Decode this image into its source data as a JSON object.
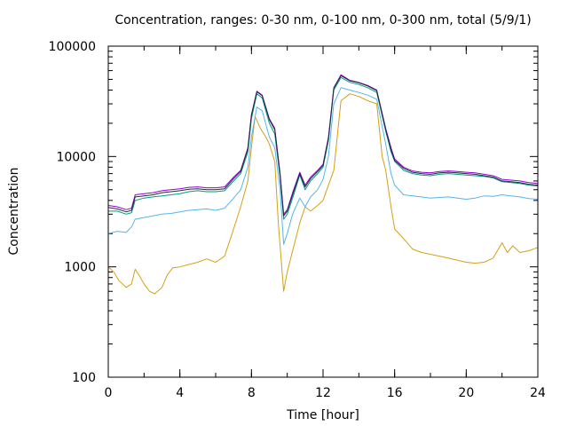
{
  "chart_data": {
    "type": "line",
    "title": "Concentration, ranges: 0-30 nm, 0-100 nm, 0-300 nm, total (5/9/1)",
    "xlabel": "Time [hour]",
    "ylabel": "Concentration",
    "xlim": [
      0,
      24
    ],
    "ylim": [
      100,
      100000
    ],
    "yscale": "log",
    "grid": false,
    "legend": "none",
    "x_ticks": [
      "0",
      "4",
      "8",
      "12",
      "16",
      "20",
      "24"
    ],
    "x_tick_values": [
      0,
      4,
      8,
      12,
      16,
      20,
      24
    ],
    "y_ticks": [
      "100",
      "1000",
      "10000",
      "100000"
    ],
    "y_tick_values": [
      100,
      1000,
      10000,
      100000
    ],
    "series": [
      {
        "color": "#d4a017",
        "x": [
          0,
          0.3,
          0.6,
          1.0,
          1.3,
          1.5,
          1.7,
          2.0,
          2.3,
          2.6,
          3.0,
          3.3,
          3.6,
          4.0,
          4.5,
          5.0,
          5.5,
          6.0,
          6.5,
          7.0,
          7.4,
          7.8,
          8.0,
          8.2,
          8.5,
          8.8,
          9.0,
          9.3,
          9.5,
          9.8,
          10.0,
          10.3,
          10.7,
          11.0,
          11.3,
          11.7,
          12.0,
          12.3,
          12.6,
          13.0,
          13.5,
          14.0,
          14.5,
          15.0,
          15.3,
          15.5,
          15.8,
          16.0,
          16.5,
          17.0,
          17.5,
          18.0,
          18.5,
          19.0,
          19.5,
          20.0,
          20.5,
          21.0,
          21.5,
          22.0,
          22.3,
          22.6,
          23.0,
          23.5,
          24.0
        ],
        "values": [
          1000,
          900,
          750,
          650,
          700,
          950,
          850,
          700,
          600,
          570,
          650,
          850,
          980,
          1000,
          1050,
          1100,
          1180,
          1100,
          1250,
          2200,
          3500,
          6000,
          12000,
          23000,
          18000,
          15000,
          13000,
          9000,
          2500,
          600,
          900,
          1400,
          2500,
          3500,
          3200,
          3600,
          4000,
          5500,
          7500,
          32000,
          37000,
          35000,
          32000,
          30000,
          10000,
          7500,
          3500,
          2200,
          1800,
          1450,
          1350,
          1300,
          1250,
          1200,
          1150,
          1100,
          1080,
          1100,
          1200,
          1650,
          1350,
          1550,
          1350,
          1400,
          1500
        ]
      },
      {
        "color": "#56b4e9",
        "x": [
          0,
          0.5,
          1.0,
          1.3,
          1.5,
          2.0,
          2.5,
          3.0,
          3.5,
          4.0,
          4.5,
          5.0,
          5.5,
          6.0,
          6.5,
          7.0,
          7.4,
          7.8,
          8.0,
          8.3,
          8.6,
          9.0,
          9.3,
          9.6,
          9.8,
          10.0,
          10.3,
          10.7,
          11.0,
          11.3,
          11.7,
          12.0,
          12.3,
          12.6,
          13.0,
          13.5,
          14.0,
          14.5,
          15.0,
          15.5,
          15.8,
          16.0,
          16.5,
          17.0,
          17.5,
          18.0,
          18.5,
          19.0,
          19.5,
          20.0,
          20.5,
          21.0,
          21.5,
          22.0,
          22.5,
          23.0,
          23.5,
          24.0
        ],
        "values": [
          2000,
          2100,
          2050,
          2300,
          2700,
          2800,
          2900,
          3000,
          3050,
          3150,
          3250,
          3300,
          3350,
          3250,
          3400,
          4200,
          5000,
          8000,
          15000,
          28000,
          26000,
          15000,
          12000,
          5000,
          1600,
          2000,
          3000,
          4200,
          3500,
          4300,
          5000,
          6200,
          10000,
          30000,
          42000,
          40000,
          38000,
          36000,
          33000,
          13000,
          7000,
          5500,
          4500,
          4400,
          4300,
          4200,
          4250,
          4300,
          4200,
          4100,
          4200,
          4400,
          4350,
          4500,
          4400,
          4300,
          4150,
          4100
        ]
      },
      {
        "color": "#009e73",
        "x": [
          0,
          0.5,
          1.0,
          1.3,
          1.5,
          2.0,
          2.5,
          3.0,
          3.5,
          4.0,
          4.5,
          5.0,
          5.5,
          6.0,
          6.5,
          7.0,
          7.4,
          7.8,
          8.0,
          8.3,
          8.6,
          9.0,
          9.3,
          9.6,
          9.8,
          10.0,
          10.3,
          10.7,
          11.0,
          11.3,
          11.7,
          12.0,
          12.3,
          12.6,
          13.0,
          13.5,
          14.0,
          14.5,
          15.0,
          15.5,
          15.8,
          16.0,
          16.5,
          17.0,
          17.5,
          18.0,
          18.5,
          19.0,
          19.5,
          20.0,
          20.5,
          21.0,
          21.5,
          22.0,
          22.5,
          23.0,
          23.5,
          24.0
        ],
        "values": [
          3200,
          3200,
          3000,
          3100,
          4000,
          4200,
          4300,
          4400,
          4500,
          4600,
          4800,
          4900,
          4800,
          4800,
          4900,
          6000,
          7000,
          11000,
          22000,
          37000,
          34000,
          20000,
          16000,
          6500,
          2700,
          3000,
          4200,
          6800,
          5000,
          6000,
          7000,
          8000,
          14000,
          40000,
          52000,
          47000,
          45000,
          42000,
          38000,
          17000,
          11000,
          9000,
          7500,
          7000,
          6800,
          6700,
          6900,
          7000,
          6900,
          6800,
          6700,
          6600,
          6400,
          5900,
          5800,
          5700,
          5500,
          5400
        ]
      },
      {
        "color": "#9400d3",
        "x": [
          0,
          0.5,
          1.0,
          1.3,
          1.5,
          2.0,
          2.5,
          3.0,
          3.5,
          4.0,
          4.5,
          5.0,
          5.5,
          6.0,
          6.5,
          7.0,
          7.4,
          7.8,
          8.0,
          8.3,
          8.6,
          9.0,
          9.3,
          9.6,
          9.8,
          10.0,
          10.3,
          10.7,
          11.0,
          11.3,
          11.7,
          12.0,
          12.3,
          12.6,
          13.0,
          13.5,
          14.0,
          14.5,
          15.0,
          15.5,
          15.8,
          16.0,
          16.5,
          17.0,
          17.5,
          18.0,
          18.5,
          19.0,
          19.5,
          20.0,
          20.5,
          21.0,
          21.5,
          22.0,
          22.5,
          23.0,
          23.5,
          24.0
        ],
        "values": [
          3600,
          3500,
          3300,
          3400,
          4500,
          4600,
          4700,
          4900,
          5000,
          5100,
          5250,
          5300,
          5200,
          5200,
          5300,
          6500,
          7500,
          12000,
          24000,
          39000,
          36000,
          22000,
          18000,
          7000,
          3000,
          3300,
          4700,
          7200,
          5500,
          6500,
          7500,
          8500,
          15000,
          42000,
          55000,
          49000,
          47000,
          44000,
          40000,
          18000,
          12000,
          9500,
          8000,
          7400,
          7200,
          7100,
          7300,
          7400,
          7300,
          7200,
          7100,
          6900,
          6700,
          6200,
          6100,
          6000,
          5800,
          5700
        ]
      },
      {
        "color": "#1f2a44",
        "x": [
          0,
          0.5,
          1.0,
          1.3,
          1.5,
          2.0,
          2.5,
          3.0,
          3.5,
          4.0,
          4.5,
          5.0,
          5.5,
          6.0,
          6.5,
          7.0,
          7.4,
          7.8,
          8.0,
          8.3,
          8.6,
          9.0,
          9.3,
          9.6,
          9.8,
          10.0,
          10.3,
          10.7,
          11.0,
          11.3,
          11.7,
          12.0,
          12.3,
          12.6,
          13.0,
          13.5,
          14.0,
          14.5,
          15.0,
          15.5,
          15.8,
          16.0,
          16.5,
          17.0,
          17.5,
          18.0,
          18.5,
          19.0,
          19.5,
          20.0,
          20.5,
          21.0,
          21.5,
          22.0,
          22.5,
          23.0,
          23.5,
          24.0
        ],
        "values": [
          3450,
          3350,
          3150,
          3250,
          4300,
          4400,
          4500,
          4700,
          4800,
          4900,
          5050,
          5100,
          5000,
          5000,
          5100,
          6300,
          7300,
          11700,
          23500,
          38500,
          35500,
          21500,
          17500,
          6800,
          2900,
          3200,
          4500,
          7000,
          5300,
          6300,
          7300,
          8300,
          14600,
          41500,
          54000,
          48500,
          46500,
          43500,
          39500,
          17500,
          11500,
          9200,
          7800,
          7200,
          7000,
          6900,
          7100,
          7200,
          7100,
          7000,
          6900,
          6700,
          6500,
          6000,
          5900,
          5800,
          5600,
          5500
        ]
      }
    ]
  }
}
